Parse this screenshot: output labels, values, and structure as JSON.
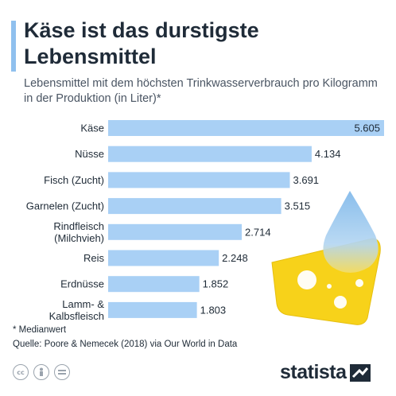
{
  "header": {
    "title": "Käse ist das durstigste Lebensmittel",
    "subtitle": "Lebensmittel mit dem höchsten Trinkwasserverbrauch pro Kilogramm in der Produktion (in Liter)*"
  },
  "chart_data": {
    "type": "bar",
    "orientation": "horizontal",
    "categories": [
      [
        "Käse"
      ],
      [
        "Nüsse"
      ],
      [
        "Fisch (Zucht)"
      ],
      [
        "Garnelen (Zucht)"
      ],
      [
        "Rindfleisch",
        "(Milchvieh)"
      ],
      [
        "Reis"
      ],
      [
        "Erdnüsse"
      ],
      [
        "Lamm- &",
        "Kalbsfleisch"
      ]
    ],
    "values": [
      5605,
      4134,
      3691,
      3515,
      2714,
      2248,
      1852,
      1803
    ],
    "value_labels": [
      "5.605",
      "4.134",
      "3.691",
      "3.515",
      "2.714",
      "2.248",
      "1.852",
      "1.803"
    ],
    "xlim": [
      0,
      5605
    ],
    "bar_color": "#a9d0f5",
    "grid": false
  },
  "footer": {
    "footnote": "* Medianwert",
    "source": "Quelle: Poore & Nemecek (2018) via Our World in Data",
    "license_icons": [
      "cc-icon",
      "by-icon",
      "nd-icon"
    ],
    "logo": "statista"
  },
  "colors": {
    "accent": "#8fc0ee",
    "bar": "#a9d0f5",
    "cheese": "#f7d21a",
    "drop_top": "#8ec3ee"
  }
}
